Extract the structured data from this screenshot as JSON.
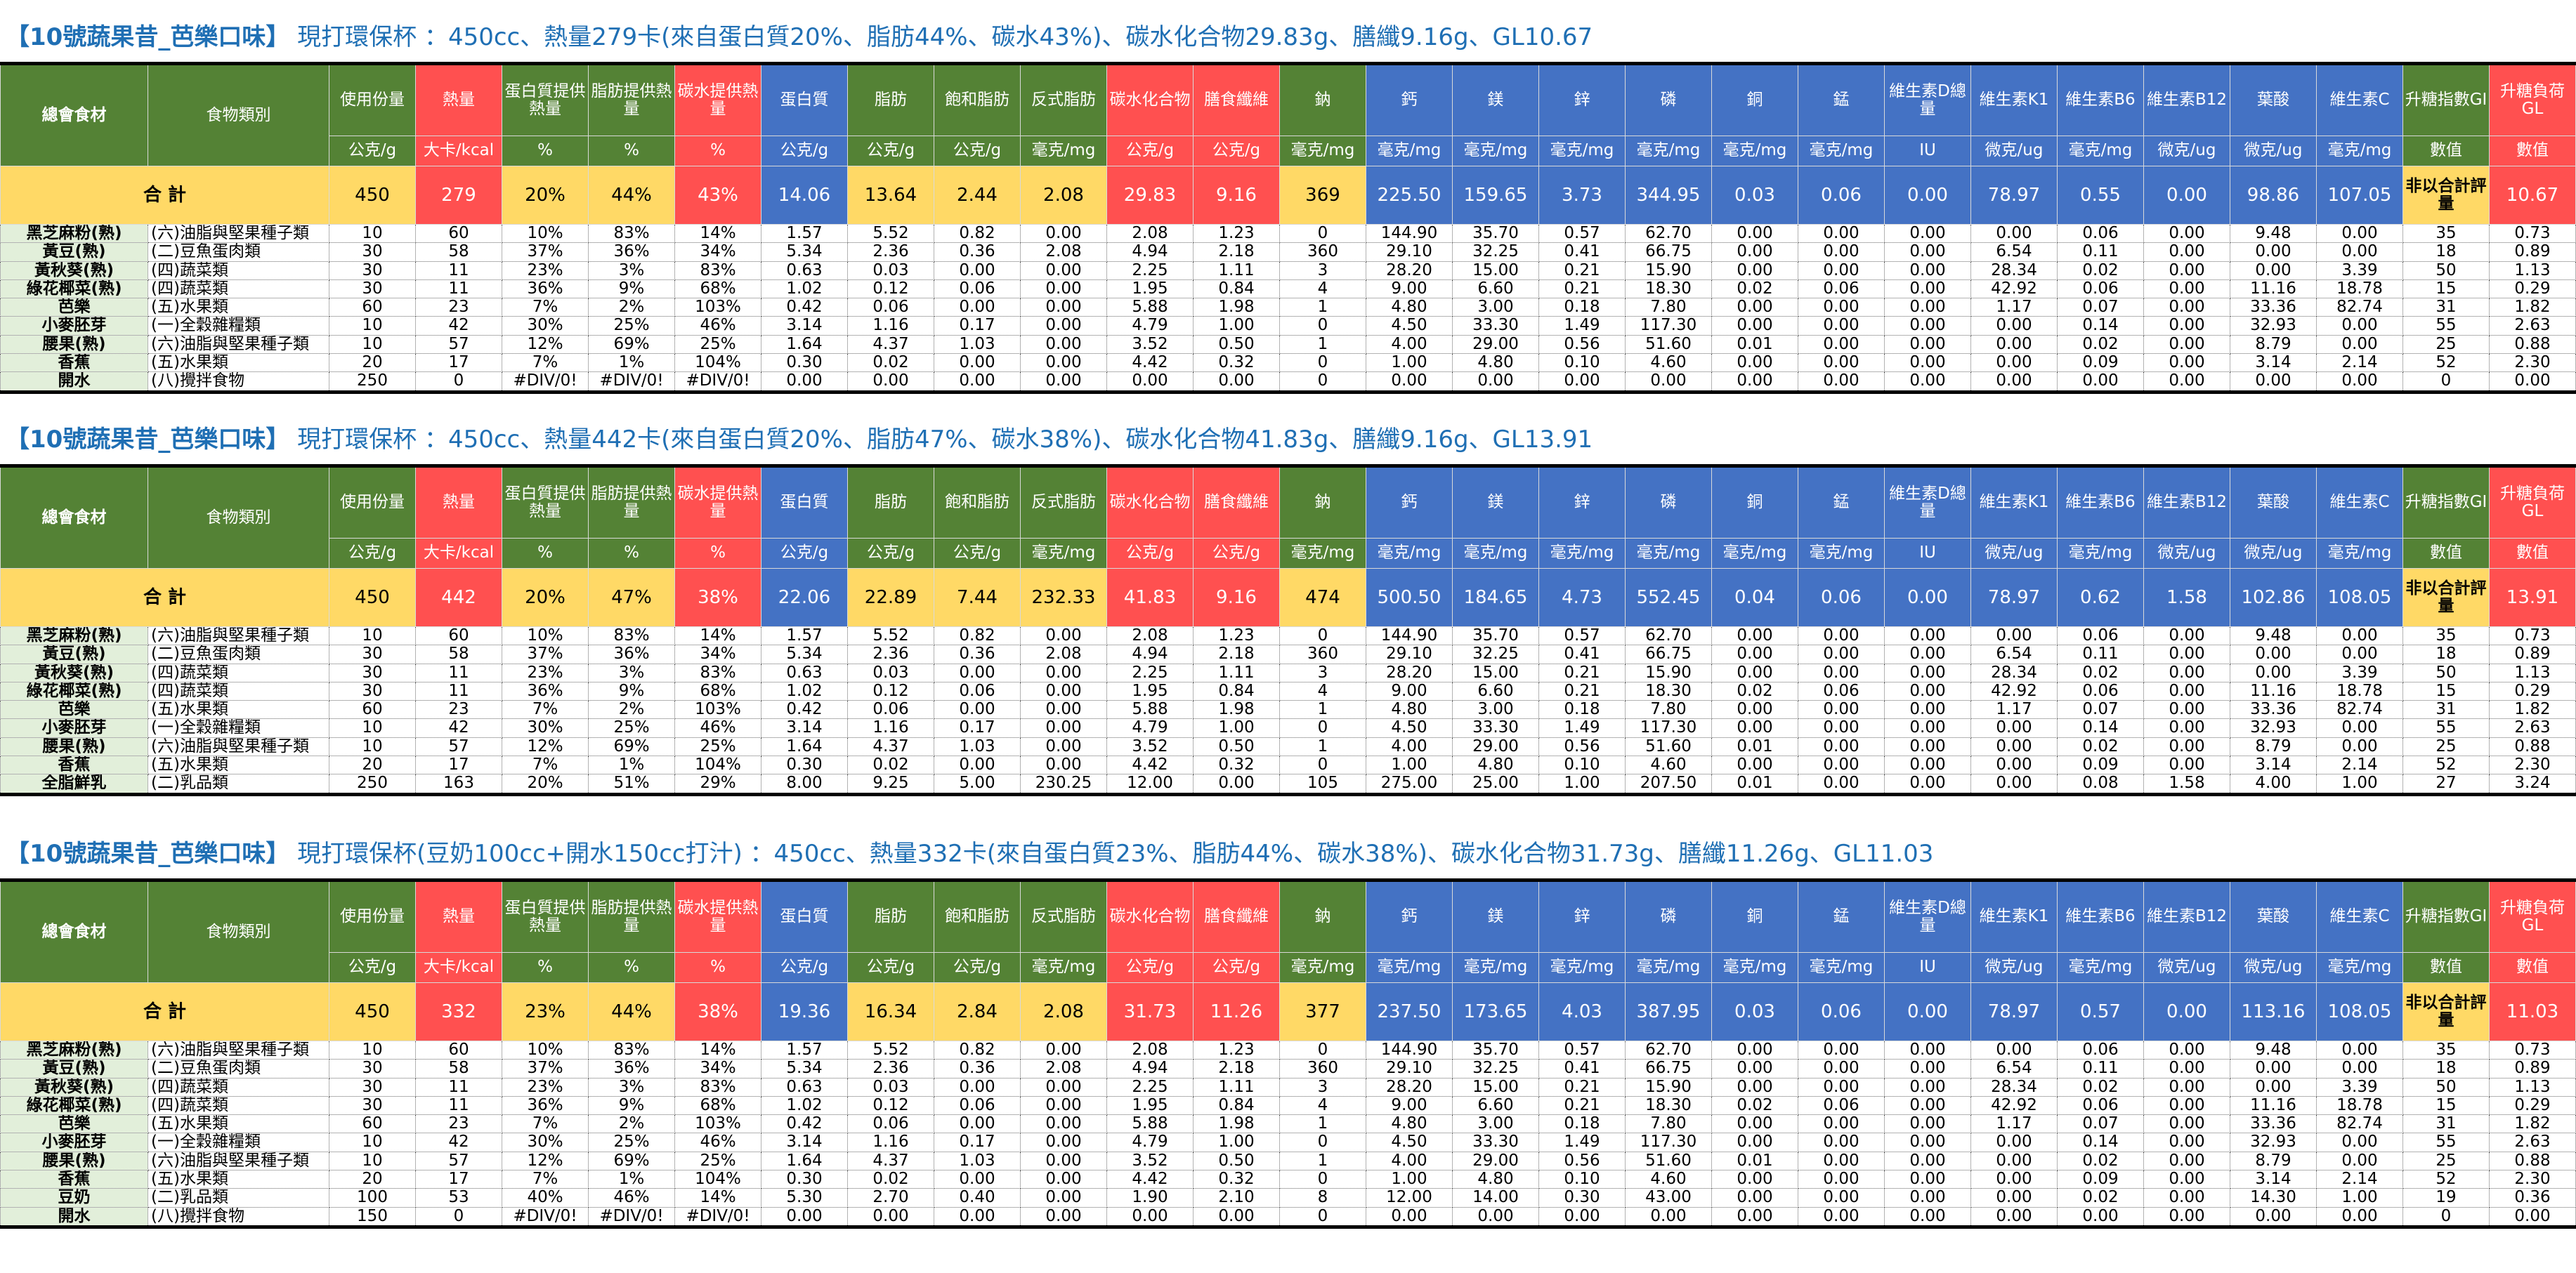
{
  "headers": {
    "name": "總會食材",
    "category": "食物類別",
    "columns": [
      {
        "label": "使用份量",
        "unit": "公克/g"
      },
      {
        "label": "熱量",
        "unit": "大卡/kcal"
      },
      {
        "label": "蛋白質提供熱量",
        "unit": "%"
      },
      {
        "label": "脂肪提供熱量",
        "unit": "%"
      },
      {
        "label": "碳水提供熱量",
        "unit": "%"
      },
      {
        "label": "蛋白質",
        "unit": "公克/g"
      },
      {
        "label": "脂肪",
        "unit": "公克/g"
      },
      {
        "label": "飽和脂肪",
        "unit": "公克/g"
      },
      {
        "label": "反式脂肪",
        "unit": "毫克/mg"
      },
      {
        "label": "碳水化合物",
        "unit": "公克/g"
      },
      {
        "label": "膳食纖維",
        "unit": "公克/g"
      },
      {
        "label": "鈉",
        "unit": "毫克/mg"
      },
      {
        "label": "鈣",
        "unit": "毫克/mg"
      },
      {
        "label": "鎂",
        "unit": "毫克/mg"
      },
      {
        "label": "鋅",
        "unit": "毫克/mg"
      },
      {
        "label": "磷",
        "unit": "毫克/mg"
      },
      {
        "label": "銅",
        "unit": "毫克/mg"
      },
      {
        "label": "錳",
        "unit": "毫克/mg"
      },
      {
        "label": "維生素D總量",
        "unit": "IU"
      },
      {
        "label": "維生素K1",
        "unit": "微克/ug"
      },
      {
        "label": "維生素B6",
        "unit": "毫克/mg"
      },
      {
        "label": "維生素B12",
        "unit": "微克/ug"
      },
      {
        "label": "葉酸",
        "unit": "微克/ug"
      },
      {
        "label": "維生素C",
        "unit": "毫克/mg"
      },
      {
        "label": "升糖指數GI",
        "unit": "數值"
      },
      {
        "label": "升糖負荷GL",
        "unit": "數值"
      }
    ],
    "total_label": "合 計"
  },
  "colors": {
    "green": "#548235",
    "red": "#ff5050",
    "blue": "#4472c4",
    "yellow": "#ffd966",
    "title": "#1f6fb4",
    "name_bg": "#e2efda"
  },
  "tables": [
    {
      "title_main": "【10號蔬果昔_芭樂口味】",
      "title_rest": " 現打環保杯 ：450cc、熱量279卡(來自蛋白質20%、脂肪44%、碳水43%)、碳水化合物29.83g、膳纖9.16g、GL10.67",
      "totals": [
        "450",
        "279",
        "20%",
        "44%",
        "43%",
        "14.06",
        "13.64",
        "2.44",
        "2.08",
        "29.83",
        "9.16",
        "369",
        "225.50",
        "159.65",
        "3.73",
        "344.95",
        "0.03",
        "0.06",
        "0.00",
        "78.97",
        "0.55",
        "0.00",
        "98.86",
        "107.05",
        "非以合計評量",
        "10.67"
      ],
      "rows": [
        [
          "黑芝麻粉(熟)",
          "(六)油脂與堅果種子類",
          "10",
          "60",
          "10%",
          "83%",
          "14%",
          "1.57",
          "5.52",
          "0.82",
          "0.00",
          "2.08",
          "1.23",
          "0",
          "144.90",
          "35.70",
          "0.57",
          "62.70",
          "0.00",
          "0.00",
          "0.00",
          "0.00",
          "0.06",
          "0.00",
          "9.48",
          "0.00",
          "35",
          "0.73"
        ],
        [
          "黃豆(熟)",
          "(二)豆魚蛋肉類",
          "30",
          "58",
          "37%",
          "36%",
          "34%",
          "5.34",
          "2.36",
          "0.36",
          "2.08",
          "4.94",
          "2.18",
          "360",
          "29.10",
          "32.25",
          "0.41",
          "66.75",
          "0.00",
          "0.00",
          "0.00",
          "6.54",
          "0.11",
          "0.00",
          "0.00",
          "0.00",
          "18",
          "0.89"
        ],
        [
          "黃秋葵(熟)",
          "(四)蔬菜類",
          "30",
          "11",
          "23%",
          "3%",
          "83%",
          "0.63",
          "0.03",
          "0.00",
          "0.00",
          "2.25",
          "1.11",
          "3",
          "28.20",
          "15.00",
          "0.21",
          "15.90",
          "0.00",
          "0.00",
          "0.00",
          "28.34",
          "0.02",
          "0.00",
          "0.00",
          "3.39",
          "50",
          "1.13"
        ],
        [
          "綠花椰菜(熟)",
          "(四)蔬菜類",
          "30",
          "11",
          "36%",
          "9%",
          "68%",
          "1.02",
          "0.12",
          "0.06",
          "0.00",
          "1.95",
          "0.84",
          "4",
          "9.00",
          "6.60",
          "0.21",
          "18.30",
          "0.02",
          "0.06",
          "0.00",
          "42.92",
          "0.06",
          "0.00",
          "11.16",
          "18.78",
          "15",
          "0.29"
        ],
        [
          "芭樂",
          "(五)水果類",
          "60",
          "23",
          "7%",
          "2%",
          "103%",
          "0.42",
          "0.06",
          "0.00",
          "0.00",
          "5.88",
          "1.98",
          "1",
          "4.80",
          "3.00",
          "0.18",
          "7.80",
          "0.00",
          "0.00",
          "0.00",
          "1.17",
          "0.07",
          "0.00",
          "33.36",
          "82.74",
          "31",
          "1.82"
        ],
        [
          "小麥胚芽",
          "(一)全穀雜糧類",
          "10",
          "42",
          "30%",
          "25%",
          "46%",
          "3.14",
          "1.16",
          "0.17",
          "0.00",
          "4.79",
          "1.00",
          "0",
          "4.50",
          "33.30",
          "1.49",
          "117.30",
          "0.00",
          "0.00",
          "0.00",
          "0.00",
          "0.14",
          "0.00",
          "32.93",
          "0.00",
          "55",
          "2.63"
        ],
        [
          "腰果(熟)",
          "(六)油脂與堅果種子類",
          "10",
          "57",
          "12%",
          "69%",
          "25%",
          "1.64",
          "4.37",
          "1.03",
          "0.00",
          "3.52",
          "0.50",
          "1",
          "4.00",
          "29.00",
          "0.56",
          "51.60",
          "0.01",
          "0.00",
          "0.00",
          "0.00",
          "0.02",
          "0.00",
          "8.79",
          "0.00",
          "25",
          "0.88"
        ],
        [
          "香蕉",
          "(五)水果類",
          "20",
          "17",
          "7%",
          "1%",
          "104%",
          "0.30",
          "0.02",
          "0.00",
          "0.00",
          "4.42",
          "0.32",
          "0",
          "1.00",
          "4.80",
          "0.10",
          "4.60",
          "0.00",
          "0.00",
          "0.00",
          "0.00",
          "0.09",
          "0.00",
          "3.14",
          "2.14",
          "52",
          "2.30"
        ],
        [
          "開水",
          "(八)攪拌食物",
          "250",
          "0",
          "#DIV/0!",
          "#DIV/0!",
          "#DIV/0!",
          "0.00",
          "0.00",
          "0.00",
          "0.00",
          "0.00",
          "0.00",
          "0",
          "0.00",
          "0.00",
          "0.00",
          "0.00",
          "0.00",
          "0.00",
          "0.00",
          "0.00",
          "0.00",
          "0.00",
          "0.00",
          "0.00",
          "0",
          "0.00"
        ]
      ]
    },
    {
      "title_main": "【10號蔬果昔_芭樂口味】",
      "title_rest": " 現打環保杯 ：450cc、熱量442卡(來自蛋白質20%、脂肪47%、碳水38%)、碳水化合物41.83g、膳纖9.16g、GL13.91",
      "totals": [
        "450",
        "442",
        "20%",
        "47%",
        "38%",
        "22.06",
        "22.89",
        "7.44",
        "232.33",
        "41.83",
        "9.16",
        "474",
        "500.50",
        "184.65",
        "4.73",
        "552.45",
        "0.04",
        "0.06",
        "0.00",
        "78.97",
        "0.62",
        "1.58",
        "102.86",
        "108.05",
        "非以合計評量",
        "13.91"
      ],
      "rows": [
        [
          "黑芝麻粉(熟)",
          "(六)油脂與堅果種子類",
          "10",
          "60",
          "10%",
          "83%",
          "14%",
          "1.57",
          "5.52",
          "0.82",
          "0.00",
          "2.08",
          "1.23",
          "0",
          "144.90",
          "35.70",
          "0.57",
          "62.70",
          "0.00",
          "0.00",
          "0.00",
          "0.00",
          "0.06",
          "0.00",
          "9.48",
          "0.00",
          "35",
          "0.73"
        ],
        [
          "黃豆(熟)",
          "(二)豆魚蛋肉類",
          "30",
          "58",
          "37%",
          "36%",
          "34%",
          "5.34",
          "2.36",
          "0.36",
          "2.08",
          "4.94",
          "2.18",
          "360",
          "29.10",
          "32.25",
          "0.41",
          "66.75",
          "0.00",
          "0.00",
          "0.00",
          "6.54",
          "0.11",
          "0.00",
          "0.00",
          "0.00",
          "18",
          "0.89"
        ],
        [
          "黃秋葵(熟)",
          "(四)蔬菜類",
          "30",
          "11",
          "23%",
          "3%",
          "83%",
          "0.63",
          "0.03",
          "0.00",
          "0.00",
          "2.25",
          "1.11",
          "3",
          "28.20",
          "15.00",
          "0.21",
          "15.90",
          "0.00",
          "0.00",
          "0.00",
          "28.34",
          "0.02",
          "0.00",
          "0.00",
          "3.39",
          "50",
          "1.13"
        ],
        [
          "綠花椰菜(熟)",
          "(四)蔬菜類",
          "30",
          "11",
          "36%",
          "9%",
          "68%",
          "1.02",
          "0.12",
          "0.06",
          "0.00",
          "1.95",
          "0.84",
          "4",
          "9.00",
          "6.60",
          "0.21",
          "18.30",
          "0.02",
          "0.06",
          "0.00",
          "42.92",
          "0.06",
          "0.00",
          "11.16",
          "18.78",
          "15",
          "0.29"
        ],
        [
          "芭樂",
          "(五)水果類",
          "60",
          "23",
          "7%",
          "2%",
          "103%",
          "0.42",
          "0.06",
          "0.00",
          "0.00",
          "5.88",
          "1.98",
          "1",
          "4.80",
          "3.00",
          "0.18",
          "7.80",
          "0.00",
          "0.00",
          "0.00",
          "1.17",
          "0.07",
          "0.00",
          "33.36",
          "82.74",
          "31",
          "1.82"
        ],
        [
          "小麥胚芽",
          "(一)全穀雜糧類",
          "10",
          "42",
          "30%",
          "25%",
          "46%",
          "3.14",
          "1.16",
          "0.17",
          "0.00",
          "4.79",
          "1.00",
          "0",
          "4.50",
          "33.30",
          "1.49",
          "117.30",
          "0.00",
          "0.00",
          "0.00",
          "0.00",
          "0.14",
          "0.00",
          "32.93",
          "0.00",
          "55",
          "2.63"
        ],
        [
          "腰果(熟)",
          "(六)油脂與堅果種子類",
          "10",
          "57",
          "12%",
          "69%",
          "25%",
          "1.64",
          "4.37",
          "1.03",
          "0.00",
          "3.52",
          "0.50",
          "1",
          "4.00",
          "29.00",
          "0.56",
          "51.60",
          "0.01",
          "0.00",
          "0.00",
          "0.00",
          "0.02",
          "0.00",
          "8.79",
          "0.00",
          "25",
          "0.88"
        ],
        [
          "香蕉",
          "(五)水果類",
          "20",
          "17",
          "7%",
          "1%",
          "104%",
          "0.30",
          "0.02",
          "0.00",
          "0.00",
          "4.42",
          "0.32",
          "0",
          "1.00",
          "4.80",
          "0.10",
          "4.60",
          "0.00",
          "0.00",
          "0.00",
          "0.00",
          "0.09",
          "0.00",
          "3.14",
          "2.14",
          "52",
          "2.30"
        ],
        [
          "全脂鮮乳",
          "(二)乳品類",
          "250",
          "163",
          "20%",
          "51%",
          "29%",
          "8.00",
          "9.25",
          "5.00",
          "230.25",
          "12.00",
          "0.00",
          "105",
          "275.00",
          "25.00",
          "1.00",
          "207.50",
          "0.01",
          "0.00",
          "0.00",
          "0.00",
          "0.08",
          "1.58",
          "4.00",
          "1.00",
          "27",
          "3.24"
        ]
      ]
    },
    {
      "title_main": "【10號蔬果昔_芭樂口味】",
      "title_rest": " 現打環保杯(豆奶100cc+開水150cc打汁) ：450cc、熱量332卡(來自蛋白質23%、脂肪44%、碳水38%)、碳水化合物31.73g、膳纖11.26g、GL11.03",
      "totals": [
        "450",
        "332",
        "23%",
        "44%",
        "38%",
        "19.36",
        "16.34",
        "2.84",
        "2.08",
        "31.73",
        "11.26",
        "377",
        "237.50",
        "173.65",
        "4.03",
        "387.95",
        "0.03",
        "0.06",
        "0.00",
        "78.97",
        "0.57",
        "0.00",
        "113.16",
        "108.05",
        "非以合計評量",
        "11.03"
      ],
      "rows": [
        [
          "黑芝麻粉(熟)",
          "(六)油脂與堅果種子類",
          "10",
          "60",
          "10%",
          "83%",
          "14%",
          "1.57",
          "5.52",
          "0.82",
          "0.00",
          "2.08",
          "1.23",
          "0",
          "144.90",
          "35.70",
          "0.57",
          "62.70",
          "0.00",
          "0.00",
          "0.00",
          "0.00",
          "0.06",
          "0.00",
          "9.48",
          "0.00",
          "35",
          "0.73"
        ],
        [
          "黃豆(熟)",
          "(二)豆魚蛋肉類",
          "30",
          "58",
          "37%",
          "36%",
          "34%",
          "5.34",
          "2.36",
          "0.36",
          "2.08",
          "4.94",
          "2.18",
          "360",
          "29.10",
          "32.25",
          "0.41",
          "66.75",
          "0.00",
          "0.00",
          "0.00",
          "6.54",
          "0.11",
          "0.00",
          "0.00",
          "0.00",
          "18",
          "0.89"
        ],
        [
          "黃秋葵(熟)",
          "(四)蔬菜類",
          "30",
          "11",
          "23%",
          "3%",
          "83%",
          "0.63",
          "0.03",
          "0.00",
          "0.00",
          "2.25",
          "1.11",
          "3",
          "28.20",
          "15.00",
          "0.21",
          "15.90",
          "0.00",
          "0.00",
          "0.00",
          "28.34",
          "0.02",
          "0.00",
          "0.00",
          "3.39",
          "50",
          "1.13"
        ],
        [
          "綠花椰菜(熟)",
          "(四)蔬菜類",
          "30",
          "11",
          "36%",
          "9%",
          "68%",
          "1.02",
          "0.12",
          "0.06",
          "0.00",
          "1.95",
          "0.84",
          "4",
          "9.00",
          "6.60",
          "0.21",
          "18.30",
          "0.02",
          "0.06",
          "0.00",
          "42.92",
          "0.06",
          "0.00",
          "11.16",
          "18.78",
          "15",
          "0.29"
        ],
        [
          "芭樂",
          "(五)水果類",
          "60",
          "23",
          "7%",
          "2%",
          "103%",
          "0.42",
          "0.06",
          "0.00",
          "0.00",
          "5.88",
          "1.98",
          "1",
          "4.80",
          "3.00",
          "0.18",
          "7.80",
          "0.00",
          "0.00",
          "0.00",
          "1.17",
          "0.07",
          "0.00",
          "33.36",
          "82.74",
          "31",
          "1.82"
        ],
        [
          "小麥胚芽",
          "(一)全穀雜糧類",
          "10",
          "42",
          "30%",
          "25%",
          "46%",
          "3.14",
          "1.16",
          "0.17",
          "0.00",
          "4.79",
          "1.00",
          "0",
          "4.50",
          "33.30",
          "1.49",
          "117.30",
          "0.00",
          "0.00",
          "0.00",
          "0.00",
          "0.14",
          "0.00",
          "32.93",
          "0.00",
          "55",
          "2.63"
        ],
        [
          "腰果(熟)",
          "(六)油脂與堅果種子類",
          "10",
          "57",
          "12%",
          "69%",
          "25%",
          "1.64",
          "4.37",
          "1.03",
          "0.00",
          "3.52",
          "0.50",
          "1",
          "4.00",
          "29.00",
          "0.56",
          "51.60",
          "0.01",
          "0.00",
          "0.00",
          "0.00",
          "0.02",
          "0.00",
          "8.79",
          "0.00",
          "25",
          "0.88"
        ],
        [
          "香蕉",
          "(五)水果類",
          "20",
          "17",
          "7%",
          "1%",
          "104%",
          "0.30",
          "0.02",
          "0.00",
          "0.00",
          "4.42",
          "0.32",
          "0",
          "1.00",
          "4.80",
          "0.10",
          "4.60",
          "0.00",
          "0.00",
          "0.00",
          "0.00",
          "0.09",
          "0.00",
          "3.14",
          "2.14",
          "52",
          "2.30"
        ],
        [
          "豆奶",
          "(二)乳品類",
          "100",
          "53",
          "40%",
          "46%",
          "14%",
          "5.30",
          "2.70",
          "0.40",
          "0.00",
          "1.90",
          "2.10",
          "8",
          "12.00",
          "14.00",
          "0.30",
          "43.00",
          "0.00",
          "0.00",
          "0.00",
          "0.00",
          "0.02",
          "0.00",
          "14.30",
          "1.00",
          "19",
          "0.36"
        ],
        [
          "開水",
          "(八)攪拌食物",
          "150",
          "0",
          "#DIV/0!",
          "#DIV/0!",
          "#DIV/0!",
          "0.00",
          "0.00",
          "0.00",
          "0.00",
          "0.00",
          "0.00",
          "0",
          "0.00",
          "0.00",
          "0.00",
          "0.00",
          "0.00",
          "0.00",
          "0.00",
          "0.00",
          "0.00",
          "0.00",
          "0.00",
          "0.00",
          "0",
          "0.00"
        ]
      ]
    }
  ]
}
